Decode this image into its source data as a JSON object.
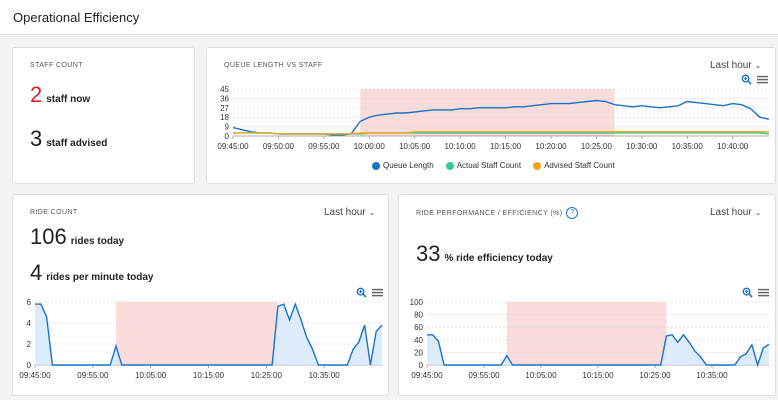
{
  "header": {
    "title": "Operational Efficiency"
  },
  "staff": {
    "title": "STAFF COUNT",
    "now_value": "2",
    "now_label": "staff now",
    "advised_value": "3",
    "advised_label": "staff advised",
    "now_color": "#d4262a"
  },
  "queue": {
    "title": "QUEUE LENGTH VS STAFF",
    "dropdown": "Last hour",
    "legend": [
      "Queue Length",
      "Actual Staff Count",
      "Advised Staff Count"
    ]
  },
  "rides": {
    "title": "RIDE COUNT",
    "dropdown": "Last hour",
    "today_value": "106",
    "today_label": "rides today",
    "per_min_value": "4",
    "per_min_label": "rides per minute today"
  },
  "perf": {
    "title": "RIDE PERFORMANCE / EFFICIENCY (%)",
    "help": "?",
    "dropdown": "Last hour",
    "value": "33",
    "label": "% ride efficiency today"
  },
  "colors": {
    "blue": "#1a73c8",
    "green": "#2ecc8f",
    "orange": "#f3a31c",
    "band": "#fadcdc",
    "fill": "#d6e9fb"
  },
  "chart_data": [
    {
      "type": "line",
      "name": "queue-vs-staff",
      "x": [
        "09:45:00",
        "09:46:00",
        "09:47:00",
        "09:48:00",
        "09:49:00",
        "09:50:00",
        "09:51:00",
        "09:52:00",
        "09:53:00",
        "09:54:00",
        "09:55:00",
        "09:56:00",
        "09:57:00",
        "09:58:00",
        "09:59:00",
        "10:00:00",
        "10:01:00",
        "10:02:00",
        "10:03:00",
        "10:04:00",
        "10:05:00",
        "10:06:00",
        "10:07:00",
        "10:08:00",
        "10:09:00",
        "10:10:00",
        "10:11:00",
        "10:12:00",
        "10:13:00",
        "10:14:00",
        "10:15:00",
        "10:16:00",
        "10:17:00",
        "10:18:00",
        "10:19:00",
        "10:20:00",
        "10:21:00",
        "10:22:00",
        "10:23:00",
        "10:24:00",
        "10:25:00",
        "10:26:00",
        "10:27:00",
        "10:28:00",
        "10:29:00",
        "10:30:00",
        "10:31:00",
        "10:32:00",
        "10:33:00",
        "10:34:00",
        "10:35:00",
        "10:36:00",
        "10:37:00",
        "10:38:00",
        "10:39:00",
        "10:40:00",
        "10:41:00",
        "10:42:00",
        "10:43:00",
        "10:44:00"
      ],
      "xticks": [
        "09:45:00",
        "09:50:00",
        "09:55:00",
        "10:00:00",
        "10:05:00",
        "10:10:00",
        "10:15:00",
        "10:20:00",
        "10:25:00",
        "10:30:00",
        "10:35:00",
        "10:40:00"
      ],
      "yticks": [
        0,
        9,
        18,
        27,
        36,
        45
      ],
      "ylim": [
        0,
        45
      ],
      "band": [
        "09:59:00",
        "10:27:00"
      ],
      "series": [
        {
          "name": "Queue Length",
          "color": "#1a73c8",
          "values": [
            8,
            6,
            4,
            3,
            3,
            2,
            2,
            2,
            2,
            2,
            2,
            1,
            1,
            2,
            14,
            18,
            20,
            21,
            22,
            22,
            23,
            24,
            25,
            25,
            25,
            26,
            26,
            27,
            27,
            27,
            27,
            28,
            28,
            29,
            30,
            31,
            31,
            31,
            32,
            33,
            34,
            33,
            30,
            29,
            28,
            29,
            28,
            27,
            28,
            29,
            33,
            32,
            31,
            30,
            29,
            31,
            30,
            26,
            18,
            16
          ]
        },
        {
          "name": "Actual Staff Count",
          "color": "#2ecc8f",
          "values": [
            3,
            3,
            3,
            3,
            3,
            2,
            2,
            2,
            2,
            2,
            2,
            2,
            2,
            2,
            2,
            3,
            3,
            3,
            3,
            3,
            3,
            3,
            3,
            3,
            3,
            3,
            3,
            3,
            3,
            3,
            3,
            3,
            3,
            3,
            3,
            3,
            3,
            3,
            3,
            3,
            3,
            3,
            3,
            3,
            3,
            3,
            3,
            3,
            3,
            3,
            3,
            3,
            3,
            3,
            3,
            3,
            3,
            3,
            3,
            2
          ]
        },
        {
          "name": "Advised Staff Count",
          "color": "#f3a31c",
          "values": [
            3,
            3,
            3,
            3,
            3,
            2,
            2,
            2,
            2,
            2,
            2,
            2,
            2,
            2,
            3,
            3,
            3,
            3,
            3,
            3,
            4,
            4,
            4,
            4,
            4,
            4,
            4,
            4,
            4,
            4,
            4,
            4,
            4,
            4,
            4,
            4,
            4,
            4,
            4,
            4,
            4,
            4,
            4,
            4,
            4,
            4,
            4,
            4,
            4,
            4,
            4,
            4,
            4,
            4,
            4,
            4,
            4,
            4,
            4,
            4
          ]
        }
      ]
    },
    {
      "type": "area",
      "name": "ride-count",
      "xticks": [
        "09:45:00",
        "09:55:00",
        "10:05:00",
        "10:15:00",
        "10:25:00",
        "10:35:00"
      ],
      "yticks": [
        0,
        2,
        4,
        6
      ],
      "ylim": [
        0,
        6
      ],
      "band": [
        "09:59:00",
        "10:27:00"
      ],
      "series": [
        {
          "values": [
            5.8,
            5.8,
            4.6,
            0,
            0,
            0,
            0,
            0,
            0,
            0,
            0,
            0,
            0,
            0,
            1.8,
            0,
            0,
            0,
            0,
            0,
            0,
            0,
            0,
            0,
            0,
            0,
            0,
            0,
            0,
            0,
            0,
            0,
            0,
            0,
            0,
            0,
            0,
            0,
            0,
            0,
            0,
            0,
            5.6,
            5.8,
            4.3,
            5.8,
            4.3,
            2.6,
            1.5,
            0,
            0,
            0,
            0,
            0,
            0,
            1.5,
            2.2,
            3.8,
            0,
            3.2,
            3.8
          ]
        }
      ]
    },
    {
      "type": "area",
      "name": "ride-efficiency",
      "xticks": [
        "09:45:00",
        "09:55:00",
        "10:05:00",
        "10:15:00",
        "10:25:00",
        "10:35:00"
      ],
      "yticks": [
        0,
        20,
        40,
        60,
        80,
        100
      ],
      "ylim": [
        0,
        100
      ],
      "band": [
        "09:59:00",
        "10:27:00"
      ],
      "series": [
        {
          "values": [
            48,
            48,
            38,
            0,
            0,
            0,
            0,
            0,
            0,
            0,
            0,
            0,
            0,
            0,
            15,
            0,
            0,
            0,
            0,
            0,
            0,
            0,
            0,
            0,
            0,
            0,
            0,
            0,
            0,
            0,
            0,
            0,
            0,
            0,
            0,
            0,
            0,
            0,
            0,
            0,
            0,
            0,
            46,
            48,
            36,
            48,
            36,
            22,
            13,
            0,
            0,
            0,
            0,
            0,
            0,
            13,
            18,
            32,
            0,
            27,
            33
          ]
        }
      ]
    }
  ]
}
